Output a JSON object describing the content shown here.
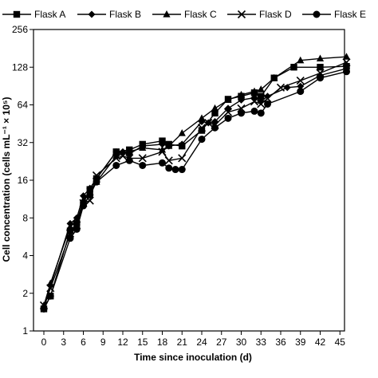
{
  "chart_data": {
    "type": "line",
    "title": "",
    "xlabel": "Time since inoculation (d)",
    "ylabel": "Cell concentration (cells mL⁻¹ × 10⁵)",
    "y_scale": "log2",
    "xlim": [
      0,
      47
    ],
    "ylim": [
      1,
      256
    ],
    "x_ticks": [
      0,
      3,
      6,
      9,
      12,
      15,
      18,
      21,
      24,
      27,
      30,
      33,
      36,
      39,
      42,
      45
    ],
    "y_ticks": [
      1,
      2,
      4,
      8,
      16,
      32,
      64,
      128,
      256
    ],
    "grid": false,
    "legend_position": "top",
    "series": [
      {
        "name": "Flask A",
        "marker": "square",
        "x": [
          0,
          1,
          4,
          5,
          6,
          7,
          8,
          11,
          13,
          15,
          18,
          19,
          21,
          24,
          26,
          28,
          30,
          32,
          33,
          35,
          38,
          42,
          46
        ],
        "y": [
          1.5,
          1.9,
          6.3,
          7.2,
          10.5,
          13.5,
          16.5,
          27,
          28,
          31,
          33,
          31,
          30,
          40,
          55,
          71,
          75,
          80,
          75,
          105,
          128,
          128,
          130
        ]
      },
      {
        "name": "Flask B",
        "marker": "diamond",
        "x": [
          0,
          1,
          4,
          5,
          6,
          7,
          8,
          11,
          12,
          13,
          15,
          18,
          19,
          21,
          24,
          25,
          26,
          28,
          30,
          32,
          33,
          34,
          37,
          39,
          42,
          46
        ],
        "y": [
          1.5,
          2.3,
          7.2,
          8,
          12,
          13.8,
          16.5,
          27,
          27,
          26,
          30,
          31,
          30,
          31,
          47,
          46,
          47,
          60,
          70,
          73,
          68,
          75,
          88,
          90,
          110,
          125
        ]
      },
      {
        "name": "Flask C",
        "marker": "triangle",
        "x": [
          0,
          1,
          4,
          5,
          6,
          7,
          8,
          11,
          13,
          15,
          18,
          19,
          21,
          24,
          26,
          28,
          30,
          32,
          33,
          35,
          39,
          42,
          46
        ],
        "y": [
          1.6,
          2.4,
          6.8,
          7.5,
          11,
          13,
          15.5,
          25,
          27,
          29,
          28,
          30,
          38,
          50,
          60,
          70,
          77,
          82,
          85,
          105,
          145,
          150,
          155
        ]
      },
      {
        "name": "Flask D",
        "marker": "x",
        "x": [
          0,
          1,
          4,
          5,
          6,
          7,
          8,
          11,
          12,
          13,
          15,
          18,
          19,
          21,
          24,
          25,
          26,
          28,
          30,
          32,
          33,
          34,
          36,
          39,
          42,
          46
        ],
        "y": [
          1.6,
          2.2,
          6,
          7,
          10.5,
          11,
          17.5,
          24,
          25,
          24,
          24,
          27,
          23,
          24,
          42,
          46,
          44,
          56,
          60,
          68,
          65,
          72,
          88,
          100,
          115,
          140
        ]
      },
      {
        "name": "Flask E",
        "marker": "circle",
        "x": [
          0,
          1,
          4,
          5,
          6,
          7,
          8,
          11,
          13,
          15,
          18,
          19,
          20,
          21,
          24,
          26,
          28,
          30,
          32,
          33,
          34,
          39,
          42,
          46
        ],
        "y": [
          1.5,
          1.9,
          5.5,
          6.5,
          10,
          12.2,
          15.5,
          21,
          23,
          21,
          22,
          20,
          19.5,
          19.5,
          34,
          42,
          50,
          55,
          57,
          55,
          65,
          82,
          105,
          118
        ]
      }
    ]
  }
}
